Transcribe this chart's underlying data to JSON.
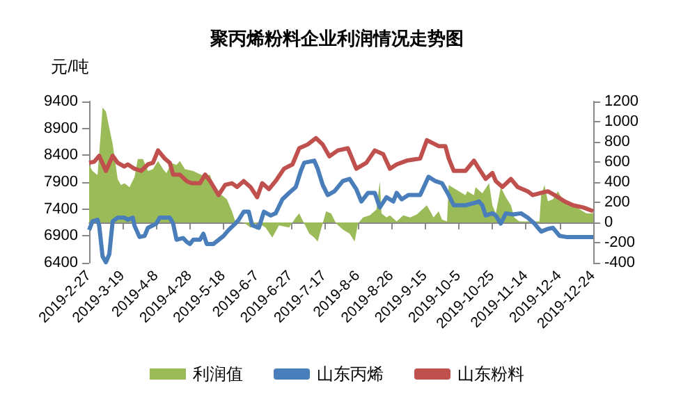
{
  "chart_data": {
    "type": "line",
    "title": "聚丙烯粉料企业利润情况走势图",
    "ylabel": "元/吨",
    "legend": "bottom",
    "marker": "none",
    "xlim": [
      "2019-02-27",
      "2019-12-24"
    ],
    "xticks": [
      {
        "value": "2019-02-27",
        "label": "2019-2-27"
      },
      {
        "value": "2019-03-19",
        "label": "2019-3-19"
      },
      {
        "value": "2019-04-08",
        "label": "2019-4-8"
      },
      {
        "value": "2019-04-28",
        "label": "2019-4-28"
      },
      {
        "value": "2019-05-18",
        "label": "2019-5-18"
      },
      {
        "value": "2019-06-07",
        "label": "2019-6-7"
      },
      {
        "value": "2019-06-27",
        "label": "2019-6-27"
      },
      {
        "value": "2019-07-17",
        "label": "2019-7-17"
      },
      {
        "value": "2019-08-06",
        "label": "2019-8-6"
      },
      {
        "value": "2019-08-26",
        "label": "2019-8-26"
      },
      {
        "value": "2019-09-15",
        "label": "2019-9-15"
      },
      {
        "value": "2019-10-05",
        "label": "2019-10-5"
      },
      {
        "value": "2019-10-25",
        "label": "2019-10-25"
      },
      {
        "value": "2019-11-14",
        "label": "2019-11-14"
      },
      {
        "value": "2019-12-04",
        "label": "2019-12-4"
      },
      {
        "value": "2019-12-24",
        "label": "2019-12-24"
      }
    ],
    "ylim": [
      6400,
      9400
    ],
    "yticks": [
      6400,
      6900,
      7400,
      7900,
      8400,
      8900,
      9400
    ],
    "y2lim": [
      -400,
      1200
    ],
    "y2ticks": [
      -400,
      -200,
      0,
      200,
      400,
      600,
      800,
      1000,
      1200
    ],
    "series": [
      {
        "name": "利润值",
        "type": "area",
        "axis": "y2",
        "color": "#9bbb59",
        "x": [
          "2019-02-27",
          "2019-03-01",
          "2019-03-04",
          "2019-03-06",
          "2019-03-07",
          "2019-03-09",
          "2019-03-13",
          "2019-03-16",
          "2019-03-18",
          "2019-03-20",
          "2019-03-23",
          "2019-03-26",
          "2019-03-28",
          "2019-03-31",
          "2019-04-03",
          "2019-04-06",
          "2019-04-09",
          "2019-04-12",
          "2019-04-14",
          "2019-04-17",
          "2019-04-20",
          "2019-04-22",
          "2019-04-25",
          "2019-04-30",
          "2019-05-05",
          "2019-05-10",
          "2019-05-13",
          "2019-05-17",
          "2019-05-20",
          "2019-05-23",
          "2019-05-25",
          "2019-05-30",
          "2019-06-03",
          "2019-06-07",
          "2019-06-12",
          "2019-06-16",
          "2019-06-20",
          "2019-06-26",
          "2019-06-30",
          "2019-07-02",
          "2019-07-05",
          "2019-07-08",
          "2019-07-11",
          "2019-07-13",
          "2019-07-16",
          "2019-07-18",
          "2019-07-21",
          "2019-07-24",
          "2019-07-28",
          "2019-08-01",
          "2019-08-04",
          "2019-08-06",
          "2019-08-09",
          "2019-08-13",
          "2019-08-17",
          "2019-08-19",
          "2019-08-20",
          "2019-08-23",
          "2019-08-25",
          "2019-08-29",
          "2019-09-02",
          "2019-09-06",
          "2019-09-10",
          "2019-09-16",
          "2019-09-20",
          "2019-09-23",
          "2019-09-25",
          "2019-09-28",
          "2019-09-29",
          "2019-10-09",
          "2019-10-10",
          "2019-10-14",
          "2019-10-15",
          "2019-10-19",
          "2019-10-23",
          "2019-10-25",
          "2019-10-27",
          "2019-10-30",
          "2019-11-02",
          "2019-11-05",
          "2019-11-07",
          "2019-11-10",
          "2019-11-22",
          "2019-11-23",
          "2019-11-25",
          "2019-11-27",
          "2019-11-30",
          "2019-12-03",
          "2019-12-05",
          "2019-12-08",
          "2019-12-12",
          "2019-12-20",
          "2019-12-24"
        ],
        "values": [
          570,
          510,
          470,
          900,
          1140,
          1100,
          780,
          430,
          370,
          390,
          350,
          450,
          630,
          630,
          510,
          530,
          610,
          530,
          490,
          590,
          570,
          610,
          530,
          510,
          470,
          470,
          290,
          270,
          230,
          110,
          10,
          0,
          -50,
          0,
          -50,
          -150,
          -30,
          -50,
          50,
          90,
          -10,
          -110,
          -150,
          -190,
          -10,
          110,
          90,
          -10,
          -70,
          -110,
          -190,
          -10,
          50,
          70,
          130,
          410,
          90,
          50,
          70,
          10,
          70,
          50,
          80,
          170,
          50,
          110,
          30,
          10,
          370,
          270,
          310,
          270,
          350,
          290,
          390,
          170,
          90,
          350,
          250,
          170,
          50,
          10,
          10,
          270,
          370,
          210,
          230,
          310,
          250,
          210,
          170,
          90,
          90
        ]
      },
      {
        "name": "山东丙烯",
        "color": "#4a7ebb",
        "x": [
          "2019-02-27",
          "2019-03-01",
          "2019-03-04",
          "2019-03-05",
          "2019-03-07",
          "2019-03-09",
          "2019-03-11",
          "2019-03-13",
          "2019-03-16",
          "2019-03-20",
          "2019-03-22",
          "2019-03-25",
          "2019-03-26",
          "2019-03-29",
          "2019-04-01",
          "2019-04-03",
          "2019-04-08",
          "2019-04-10",
          "2019-04-16",
          "2019-04-18",
          "2019-04-20",
          "2019-04-24",
          "2019-04-26",
          "2019-04-28",
          "2019-04-30",
          "2019-05-04",
          "2019-05-06",
          "2019-05-08",
          "2019-05-12",
          "2019-05-18",
          "2019-05-21",
          "2019-05-25",
          "2019-05-27",
          "2019-05-30",
          "2019-06-02",
          "2019-06-04",
          "2019-06-08",
          "2019-06-11",
          "2019-06-15",
          "2019-06-18",
          "2019-06-22",
          "2019-06-26",
          "2019-06-30",
          "2019-07-03",
          "2019-07-05",
          "2019-07-11",
          "2019-07-13",
          "2019-07-16",
          "2019-07-19",
          "2019-07-23",
          "2019-07-28",
          "2019-08-01",
          "2019-08-05",
          "2019-08-08",
          "2019-08-12",
          "2019-08-16",
          "2019-08-19",
          "2019-08-23",
          "2019-08-27",
          "2019-08-29",
          "2019-09-01",
          "2019-09-05",
          "2019-09-12",
          "2019-09-17",
          "2019-09-21",
          "2019-09-25",
          "2019-09-29",
          "2019-10-02",
          "2019-10-09",
          "2019-10-14",
          "2019-10-17",
          "2019-10-19",
          "2019-10-21",
          "2019-10-25",
          "2019-10-27",
          "2019-10-30",
          "2019-11-02",
          "2019-11-06",
          "2019-11-11",
          "2019-11-15",
          "2019-11-19",
          "2019-11-23",
          "2019-11-27",
          "2019-11-30",
          "2019-12-04",
          "2019-12-08",
          "2019-12-24"
        ],
        "values": [
          7010,
          7170,
          7200,
          7090,
          6520,
          6410,
          6560,
          7170,
          7240,
          7240,
          7200,
          7240,
          7090,
          6880,
          6900,
          7050,
          7130,
          7240,
          7240,
          7130,
          6830,
          6860,
          6790,
          6750,
          6830,
          6830,
          6940,
          6750,
          6750,
          6900,
          7010,
          7130,
          7200,
          7350,
          7350,
          7100,
          7050,
          7350,
          7280,
          7320,
          7580,
          7700,
          7810,
          8110,
          8260,
          8300,
          8150,
          7850,
          7660,
          7730,
          7920,
          7960,
          7770,
          7540,
          7700,
          7700,
          7430,
          7620,
          7540,
          7700,
          7580,
          7660,
          7660,
          8000,
          7920,
          7880,
          7660,
          7470,
          7470,
          7510,
          7540,
          7470,
          7280,
          7320,
          7280,
          7130,
          7320,
          7300,
          7320,
          7240,
          7130,
          6980,
          7030,
          7050,
          6900,
          6880,
          6880
        ]
      },
      {
        "name": "山东粉料",
        "color": "#c0504d",
        "x": [
          "2019-02-27",
          "2019-03-02",
          "2019-03-05",
          "2019-03-09",
          "2019-03-13",
          "2019-03-16",
          "2019-03-20",
          "2019-03-22",
          "2019-03-26",
          "2019-03-30",
          "2019-04-03",
          "2019-04-06",
          "2019-04-09",
          "2019-04-13",
          "2019-04-16",
          "2019-04-18",
          "2019-04-22",
          "2019-04-26",
          "2019-04-29",
          "2019-05-04",
          "2019-05-07",
          "2019-05-10",
          "2019-05-15",
          "2019-05-19",
          "2019-05-23",
          "2019-05-26",
          "2019-05-30",
          "2019-06-03",
          "2019-06-07",
          "2019-06-10",
          "2019-06-14",
          "2019-06-18",
          "2019-06-23",
          "2019-06-28",
          "2019-07-02",
          "2019-07-07",
          "2019-07-12",
          "2019-07-16",
          "2019-07-20",
          "2019-07-25",
          "2019-07-31",
          "2019-08-05",
          "2019-08-11",
          "2019-08-16",
          "2019-08-21",
          "2019-08-25",
          "2019-08-29",
          "2019-09-04",
          "2019-09-12",
          "2019-09-16",
          "2019-09-23",
          "2019-09-27",
          "2019-09-29",
          "2019-10-02",
          "2019-10-09",
          "2019-10-14",
          "2019-10-17",
          "2019-10-21",
          "2019-10-25",
          "2019-10-27",
          "2019-10-31",
          "2019-11-05",
          "2019-11-09",
          "2019-11-15",
          "2019-11-18",
          "2019-11-23",
          "2019-11-27",
          "2019-12-01",
          "2019-12-07",
          "2019-12-12",
          "2019-12-18",
          "2019-12-24"
        ],
        "values": [
          8260,
          8280,
          8390,
          8110,
          8390,
          8260,
          8190,
          8230,
          8150,
          8110,
          8230,
          8260,
          8490,
          8340,
          8260,
          8040,
          8040,
          7920,
          7880,
          7880,
          8040,
          7920,
          7660,
          7850,
          7880,
          7810,
          7920,
          7810,
          7620,
          7880,
          7770,
          7920,
          8150,
          8230,
          8530,
          8600,
          8720,
          8600,
          8380,
          8490,
          8530,
          8150,
          8260,
          8490,
          8420,
          8150,
          8230,
          8300,
          8340,
          8680,
          8570,
          8570,
          8340,
          8110,
          8110,
          8300,
          8150,
          7960,
          8070,
          7920,
          7810,
          7960,
          7810,
          7730,
          7660,
          7700,
          7730,
          7660,
          7540,
          7470,
          7430,
          7360
        ]
      }
    ]
  }
}
